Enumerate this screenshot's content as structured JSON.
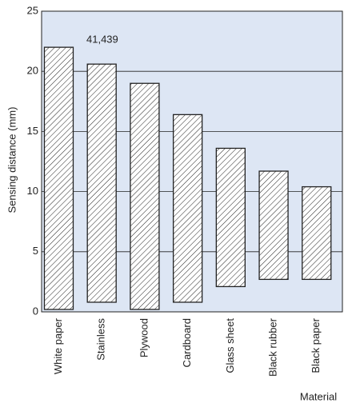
{
  "chart_data": {
    "type": "range-bar",
    "categories": [
      "White paper",
      "Stainless",
      "Plywood",
      "Cardboard",
      "Glass sheet",
      "Black rubber",
      "Black paper"
    ],
    "low": [
      0.2,
      0.8,
      0.2,
      0.8,
      2.1,
      2.7,
      2.7
    ],
    "high": [
      22,
      20.6,
      19,
      16.4,
      13.6,
      11.7,
      10.4
    ],
    "ylim": [
      0,
      25
    ],
    "yticks": [
      0,
      5,
      10,
      15,
      20,
      25
    ],
    "grid": true,
    "y_label": "Sensing distance (mm)",
    "x_label": "Material",
    "annotation": "41,439",
    "background": "#dde6f4"
  }
}
